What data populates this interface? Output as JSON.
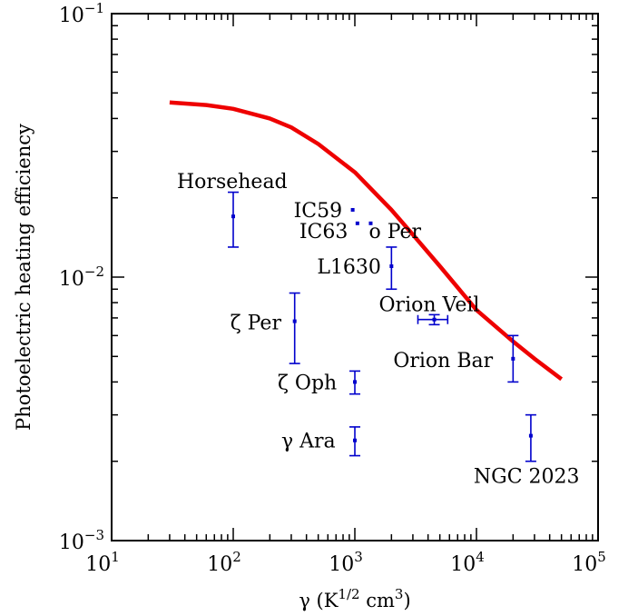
{
  "chart_data": {
    "type": "scatter",
    "title": "",
    "xlabel": "γ (K^1/2 cm^3)",
    "ylabel": "Photoelectric heating efficiency",
    "xscale": "log",
    "yscale": "log",
    "xlim": [
      10,
      100000
    ],
    "ylim": [
      0.001,
      0.1
    ],
    "grid": false,
    "legend": "none",
    "x_ticks": [
      {
        "base": "10",
        "exp": "1"
      },
      {
        "base": "10",
        "exp": "2"
      },
      {
        "base": "10",
        "exp": "3"
      },
      {
        "base": "10",
        "exp": "4"
      },
      {
        "base": "10",
        "exp": "5"
      }
    ],
    "y_ticks": [
      {
        "base": "10",
        "exp": "−3",
        "value": 0.001
      },
      {
        "base": "10",
        "exp": "−2",
        "value": 0.01
      },
      {
        "base": "10",
        "exp": "−1",
        "value": 0.1
      }
    ],
    "colors": {
      "model": "#ee0000",
      "data": "#0000cc"
    },
    "series": [
      {
        "type": "line",
        "points": [
          [
            30,
            0.046
          ],
          [
            60,
            0.045
          ],
          [
            100,
            0.0435
          ],
          [
            200,
            0.04
          ],
          [
            300,
            0.037
          ],
          [
            500,
            0.032
          ],
          [
            1000,
            0.025
          ],
          [
            2000,
            0.018
          ],
          [
            3000,
            0.0145
          ],
          [
            5000,
            0.011
          ],
          [
            10000,
            0.0075
          ],
          [
            20000,
            0.0057
          ],
          [
            30000,
            0.0049
          ],
          [
            50000,
            0.0041
          ]
        ]
      },
      {
        "type": "scatter",
        "points": [
          {
            "label": "Horsehead",
            "x": 100,
            "y": 0.017,
            "ylo": 0.013,
            "yhi": 0.021
          },
          {
            "label": "IC59",
            "x": 960,
            "y": 0.018
          },
          {
            "label": "IC63",
            "x": 1050,
            "y": 0.016
          },
          {
            "label": "ο Per",
            "x": 1350,
            "y": 0.016
          },
          {
            "label": "L1630",
            "x": 2000,
            "y": 0.011,
            "ylo": 0.009,
            "yhi": 0.013
          },
          {
            "label": "ζ Per",
            "x": 320,
            "y": 0.0068,
            "ylo": 0.0047,
            "yhi": 0.0087
          },
          {
            "label": "Orion Veil",
            "x": 4500,
            "y": 0.0069,
            "ylo": 0.0066,
            "yhi": 0.0072,
            "xlo": 3300,
            "xhi": 5800
          },
          {
            "label": "Orion Bar",
            "x": 20000,
            "y": 0.0049,
            "ylo": 0.004,
            "yhi": 0.006
          },
          {
            "label": "ζ Oph",
            "x": 1000,
            "y": 0.004,
            "ylo": 0.0036,
            "yhi": 0.0044
          },
          {
            "label": "γ Ara",
            "x": 1000,
            "y": 0.0024,
            "ylo": 0.0021,
            "yhi": 0.0027
          },
          {
            "label": "NGC 2023",
            "x": 28000,
            "y": 0.0025,
            "ylo": 0.002,
            "yhi": 0.003
          }
        ]
      }
    ]
  }
}
